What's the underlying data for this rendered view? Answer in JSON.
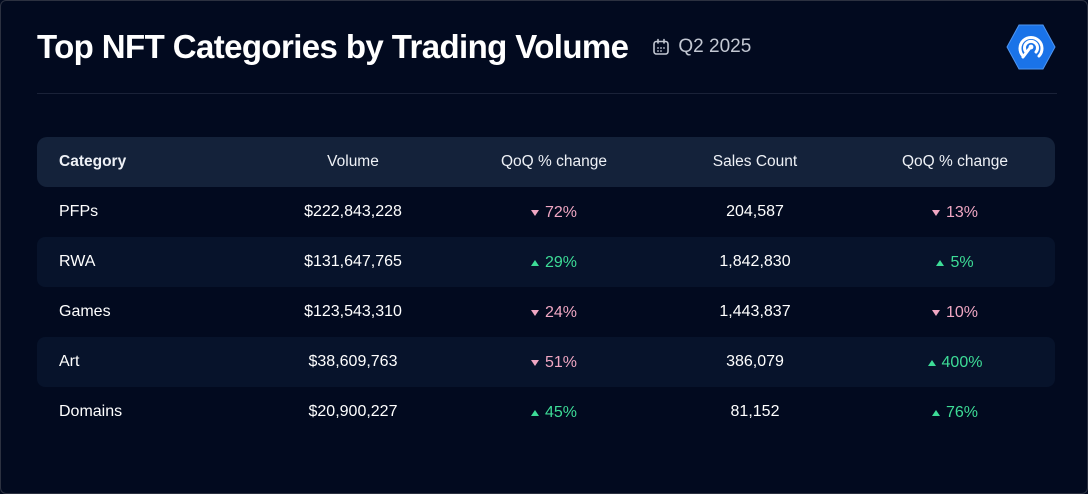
{
  "header": {
    "title": "Top NFT Categories by Trading Volume",
    "period": "Q2 2025",
    "calendar_icon": "calendar-icon",
    "logo_icon": "signal-logo-icon"
  },
  "colors": {
    "background": "#020a1f",
    "header_row": "#14223a",
    "alt_row": "#07132b",
    "up": "#3ddc97",
    "down": "#f0a7c3",
    "logo": "#1a73e8"
  },
  "chart_data": {
    "type": "table",
    "columns": [
      "Category",
      "Volume",
      "QoQ % change",
      "Sales Count",
      "QoQ % change"
    ],
    "rows": [
      {
        "category": "PFPs",
        "volume": "$222,843,228",
        "volume_change": {
          "text": "72%",
          "direction": "down"
        },
        "sales": "204,587",
        "sales_change": {
          "text": "13%",
          "direction": "down"
        }
      },
      {
        "category": "RWA",
        "volume": "$131,647,765",
        "volume_change": {
          "text": "29%",
          "direction": "up"
        },
        "sales": "1,842,830",
        "sales_change": {
          "text": "5%",
          "direction": "up"
        }
      },
      {
        "category": "Games",
        "volume": "$123,543,310",
        "volume_change": {
          "text": "24%",
          "direction": "down"
        },
        "sales": "1,443,837",
        "sales_change": {
          "text": "10%",
          "direction": "down"
        }
      },
      {
        "category": "Art",
        "volume": "$38,609,763",
        "volume_change": {
          "text": "51%",
          "direction": "down"
        },
        "sales": "386,079",
        "sales_change": {
          "text": "400%",
          "direction": "up"
        }
      },
      {
        "category": "Domains",
        "volume": "$20,900,227",
        "volume_change": {
          "text": "45%",
          "direction": "up"
        },
        "sales": "81,152",
        "sales_change": {
          "text": "76%",
          "direction": "up"
        }
      }
    ]
  }
}
